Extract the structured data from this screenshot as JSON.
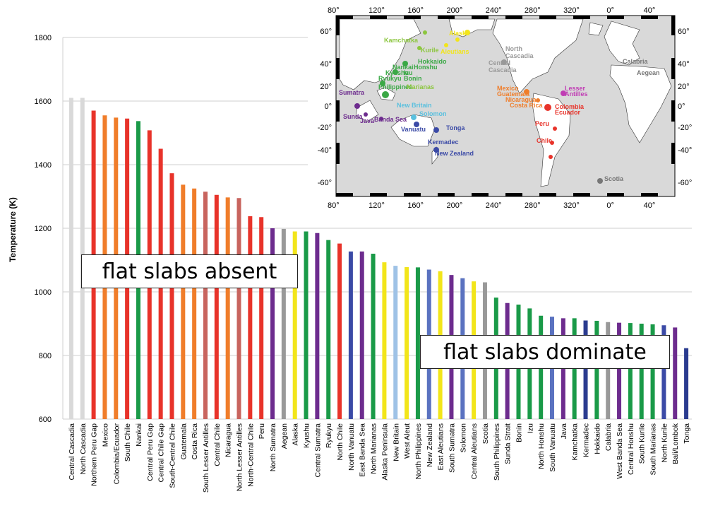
{
  "chart_data": {
    "type": "bar",
    "ylabel": "Temperature (K)",
    "ylim": [
      600,
      1800
    ],
    "yticks": [
      600,
      800,
      1000,
      1200,
      1400,
      1600,
      1800
    ],
    "grid": true,
    "categories": [
      "Central Cascadia",
      "North Cascadia",
      "Northern Peru Gap",
      "Mexico",
      "Colombia/Ecuador",
      "South Chile",
      "Nankai",
      "Central Peru Gap",
      "Central Chile Gap",
      "South-Central Chile",
      "Guatemala",
      "Costa Rica",
      "South Lesser Antilles",
      "Central Chile",
      "Nicaragua",
      "North Lesser Antilles",
      "North-Central Chile",
      "Peru",
      "North Sumatra",
      "Aegean",
      "Alaska",
      "Kyushu",
      "Central Sumatra",
      "Ryukyu",
      "North Chile",
      "North Vanuatu",
      "East Banda Sea",
      "North Marianas",
      "Alaska Peninsula",
      "New Britain",
      "West Aleut",
      "North Philippines",
      "New Zealand",
      "East Aleutians",
      "South Sumatra",
      "Solomon",
      "Central Aleutians",
      "Scotia",
      "South Philippines",
      "Sunda Strait",
      "Bonin",
      "Izu",
      "North Honshu",
      "South Vanuatu",
      "Java",
      "Kamchatka",
      "Kermadec",
      "Hokkaido",
      "Calabria",
      "West Banda Sea",
      "Central Honshu",
      "South Kurile",
      "South Marianas",
      "North Kurile",
      "Bali/Lombok",
      "Tonga"
    ],
    "values": [
      1610,
      1610,
      1570,
      1555,
      1548,
      1545,
      1537,
      1508,
      1450,
      1373,
      1337,
      1325,
      1315,
      1305,
      1297,
      1295,
      1238,
      1235,
      1200,
      1198,
      1190,
      1190,
      1185,
      1163,
      1152,
      1127,
      1127,
      1120,
      1093,
      1082,
      1078,
      1077,
      1070,
      1065,
      1053,
      1043,
      1033,
      1030,
      982,
      965,
      960,
      948,
      925,
      922,
      917,
      917,
      910,
      909,
      905,
      903,
      902,
      900,
      898,
      895,
      888,
      823
    ],
    "colors": [
      "#d9d9d9",
      "#d9d9d9",
      "#e8332a",
      "#f07d2a",
      "#f07d2a",
      "#e8332a",
      "#1a9a48",
      "#e8332a",
      "#e8332a",
      "#e8332a",
      "#f07d2a",
      "#f07d2a",
      "#c8645e",
      "#e8332a",
      "#f07d2a",
      "#c8645e",
      "#e8332a",
      "#e8332a",
      "#6d2c8e",
      "#999999",
      "#f2e51a",
      "#1a9a48",
      "#6d2c8e",
      "#1a9a48",
      "#e8332a",
      "#3b4aa6",
      "#6d2c8e",
      "#1a9a48",
      "#f2e51a",
      "#9fc2e6",
      "#f2e51a",
      "#1a9a48",
      "#5a72c0",
      "#f2e51a",
      "#6d2c8e",
      "#5a72c0",
      "#f2e51a",
      "#999999",
      "#1a9a48",
      "#6d2c8e",
      "#1a9a48",
      "#1a9a48",
      "#1a9a48",
      "#5a72c0",
      "#6d2c8e",
      "#1a9a48",
      "#2a3b8f",
      "#1a9a48",
      "#999999",
      "#6d2c8e",
      "#1a9a48",
      "#1a9a48",
      "#1a9a48",
      "#3b4aa6",
      "#6d2c8e",
      "#2a3b8f"
    ],
    "annotations": [
      "flat slabs absent",
      "flat slabs dominate"
    ]
  },
  "map": {
    "top_lon_labels": [
      "80°",
      "120°",
      "160°",
      "200°",
      "240°",
      "280°",
      "320°",
      "0°",
      "40°"
    ],
    "bottom_lon_labels": [
      "80°",
      "120°",
      "160°",
      "200°",
      "240°",
      "280°",
      "320°",
      "0°",
      "40°"
    ],
    "left_lat_labels": [
      "60°",
      "40°",
      "20°",
      "0°",
      "-20°",
      "-40°",
      "-60°"
    ],
    "right_lat_labels": [
      "60°",
      "40°",
      "20°",
      "0°",
      "-20°",
      "-40°",
      "-60°"
    ],
    "labels": [
      {
        "text": "Kamchatka",
        "color": "#8cc63f"
      },
      {
        "text": "Alaska",
        "color": "#f2e51a"
      },
      {
        "text": "Aleutians",
        "color": "#f2e51a"
      },
      {
        "text": "Kurile",
        "color": "#8cc63f"
      },
      {
        "text": "Hokkaido",
        "color": "#3aa845"
      },
      {
        "text": "Honshu",
        "color": "#3aa845"
      },
      {
        "text": "Kyushu",
        "color": "#3aa845"
      },
      {
        "text": "Nankai",
        "color": "#3aa845"
      },
      {
        "text": "Izu",
        "color": "#3aa845"
      },
      {
        "text": "Ryukyu",
        "color": "#3aa845"
      },
      {
        "text": "Bonin",
        "color": "#3aa845"
      },
      {
        "text": "Philippines",
        "color": "#3aa845"
      },
      {
        "text": "Marianas",
        "color": "#8cc63f"
      },
      {
        "text": "North",
        "color": "#999999"
      },
      {
        "text": "Cascadia",
        "color": "#999999"
      },
      {
        "text": "Central",
        "color": "#999999"
      },
      {
        "text": "Cascadia",
        "color": "#999999"
      },
      {
        "text": "Calabria",
        "color": "#777777"
      },
      {
        "text": "Aegean",
        "color": "#777777"
      },
      {
        "text": "Sumatra",
        "color": "#6d2c8e"
      },
      {
        "text": "New Britain",
        "color": "#5bc0de"
      },
      {
        "text": "Solomon",
        "color": "#5bc0de"
      },
      {
        "text": "Sunda",
        "color": "#6d2c8e"
      },
      {
        "text": "Java",
        "color": "#6d2c8e"
      },
      {
        "text": "Banda Sea",
        "color": "#6d2c8e"
      },
      {
        "text": "Vanuatu",
        "color": "#3b4aa6"
      },
      {
        "text": "Tonga",
        "color": "#3b4aa6"
      },
      {
        "text": "Kermadec",
        "color": "#3b4aa6"
      },
      {
        "text": "New Zealand",
        "color": "#3b4aa6"
      },
      {
        "text": "Mexico",
        "color": "#f07d2a"
      },
      {
        "text": "Guatemala",
        "color": "#f07d2a"
      },
      {
        "text": "Nicaragua",
        "color": "#f07d2a"
      },
      {
        "text": "Costa Rica",
        "color": "#f07d2a"
      },
      {
        "text": "Lesser",
        "color": "#c03cb4"
      },
      {
        "text": "Antilles",
        "color": "#c03cb4"
      },
      {
        "text": "Colombia",
        "color": "#e8332a"
      },
      {
        "text": "Ecuador",
        "color": "#e8332a"
      },
      {
        "text": "Peru",
        "color": "#e8332a"
      },
      {
        "text": "Chile",
        "color": "#e8332a"
      },
      {
        "text": "Scotia",
        "color": "#777777"
      }
    ]
  }
}
